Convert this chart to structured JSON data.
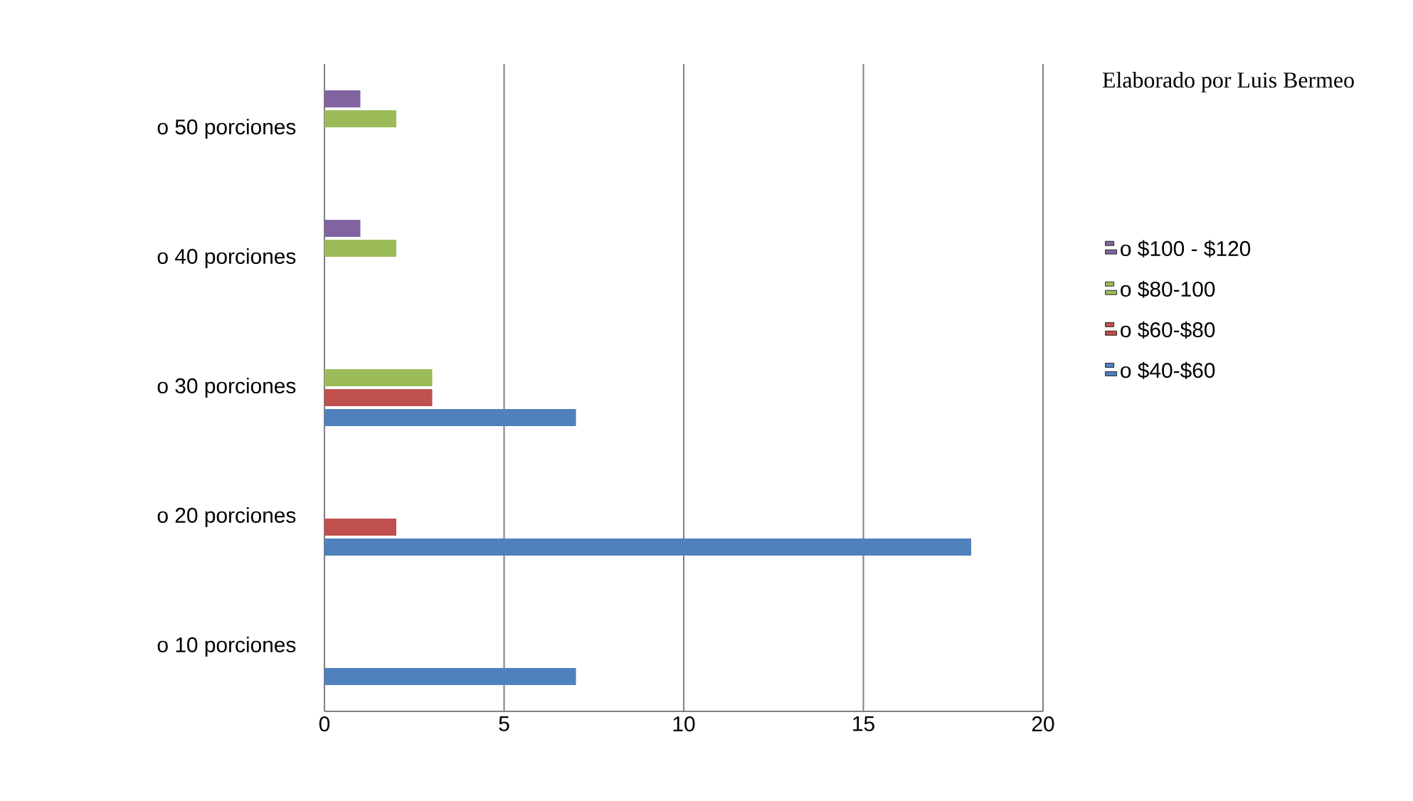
{
  "chart_data": {
    "type": "bar",
    "orientation": "horizontal",
    "categories": [
      "o    50 porciones",
      "o    40 porciones",
      "o    30 porciones",
      "o    20 porciones",
      "o    10 porciones"
    ],
    "series": [
      {
        "name": "o    $40-$60",
        "color": "#4f81bd",
        "values": [
          null,
          null,
          7,
          18,
          7
        ]
      },
      {
        "name": "o    $60-$80",
        "color": "#c0504d",
        "values": [
          null,
          null,
          3,
          2,
          null
        ]
      },
      {
        "name": "o    $80-100",
        "color": "#9bbb59",
        "values": [
          2,
          2,
          3,
          null,
          null
        ]
      },
      {
        "name": "o    $100 - $120",
        "color": "#8064a2",
        "values": [
          1,
          1,
          null,
          null,
          null
        ]
      }
    ],
    "xlim": [
      0,
      20
    ],
    "xticks": [
      0,
      5,
      10,
      15,
      20
    ],
    "grid": "x",
    "legend": "right",
    "annotations": [
      "Elaborado por Luis Bermeo"
    ]
  }
}
